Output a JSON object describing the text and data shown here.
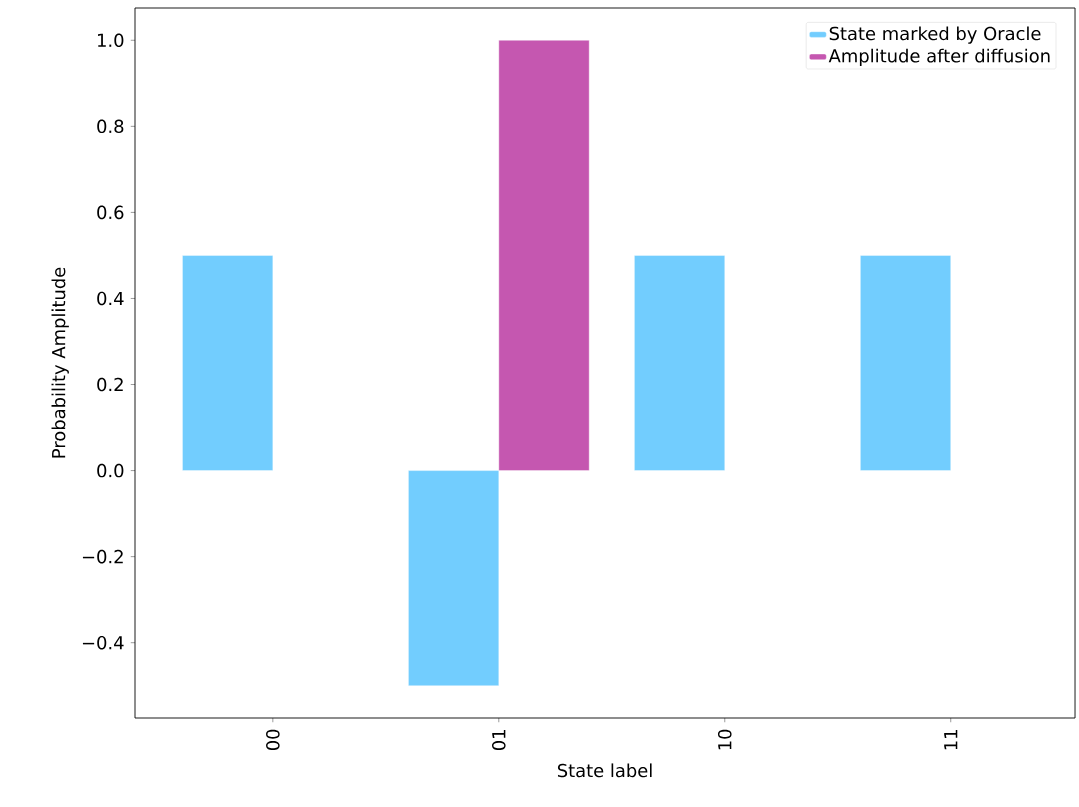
{
  "chart_data": {
    "type": "bar",
    "xlabel": "State label",
    "ylabel": "Probability Amplitude",
    "categories": [
      "00",
      "01",
      "10",
      "11"
    ],
    "series": [
      {
        "name": "State marked by Oracle",
        "color": "#72cdfe",
        "values": [
          0.5,
          -0.5,
          0.5,
          0.5
        ]
      },
      {
        "name": "Amplitude after diffusion",
        "color": "#c557b0",
        "values": [
          null,
          1.0,
          null,
          null
        ]
      }
    ],
    "ylim": [
      -0.575,
      1.075
    ],
    "yticks": [
      {
        "value": -0.4,
        "label": "−0.4"
      },
      {
        "value": -0.2,
        "label": "−0.2"
      },
      {
        "value": 0.0,
        "label": "0.0"
      },
      {
        "value": 0.2,
        "label": "0.2"
      },
      {
        "value": 0.4,
        "label": "0.4"
      },
      {
        "value": 0.6,
        "label": "0.6"
      },
      {
        "value": 0.8,
        "label": "0.8"
      },
      {
        "value": 1.0,
        "label": "1.0"
      }
    ],
    "grid": false,
    "legend": "top right"
  }
}
